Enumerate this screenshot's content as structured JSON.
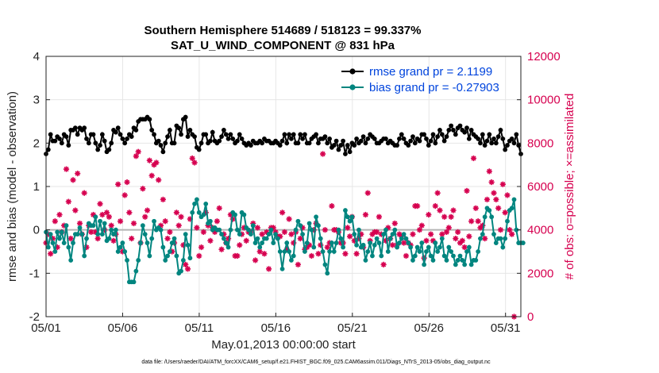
{
  "chart_data": {
    "type": "line",
    "title_line1": "Southern Hemisphere 514689 / 518123 = 99.337%",
    "title_line2": "SAT_U_WIND_COMPONENT @ 831 hPa",
    "xlabel": "May.01,2013 00:00:00 start",
    "ylabel": "rmse and bias (model - observation)",
    "ylabel_right": "# of obs: o=possible; ×=assimilated",
    "xlim": [
      1,
      32
    ],
    "ylim": [
      -2,
      4
    ],
    "ylim_right": [
      0,
      12000
    ],
    "x_ticks": [
      1,
      6,
      11,
      16,
      21,
      26,
      31
    ],
    "x_tick_labels": [
      "05/01",
      "05/06",
      "05/11",
      "05/16",
      "05/21",
      "05/26",
      "05/31"
    ],
    "y_ticks": [
      "-2",
      "-1",
      "0",
      "1",
      "2",
      "3",
      "4"
    ],
    "y_right_ticks": [
      "0",
      "2000",
      "4000",
      "6000",
      "8000",
      "10000",
      "12000"
    ],
    "legend": [
      {
        "label": "rmse grand pr = 2.1199",
        "color": "#000000"
      },
      {
        "label": "bias grand pr = -0.27903",
        "color": "#00857f"
      }
    ],
    "rmse_color": "#000000",
    "bias_color": "#00857f",
    "obs_color": "#d6004f",
    "zero_line_color": "#b4b4b4",
    "footnote": "data file: /Users/raeder/DAI/ATM_forcXX/CAM6_setup/f.e21.FHIST_BGC.f09_025.CAM6assim.011/Diags_NTrS_2013-05/obs_diag_output.nc",
    "series": [
      {
        "name": "rmse",
        "values": [
          1.75,
          1.85,
          2.2,
          2.05,
          2.05,
          2.15,
          2.1,
          2.0,
          2.2,
          2.15,
          1.95,
          2.3,
          2.3,
          2.35,
          2.2,
          2.35,
          2.3,
          2.35,
          2.1,
          2.0,
          2.2,
          2.2,
          2.0,
          1.85,
          1.95,
          2.2,
          2.05,
          1.8,
          1.85,
          2.0,
          2.3,
          2.25,
          2.35,
          2.2,
          2.1,
          2.0,
          2.1,
          2.2,
          2.15,
          2.35,
          2.3,
          2.5,
          2.55,
          2.55,
          2.55,
          2.6,
          2.55,
          2.3,
          2.2,
          2.0,
          2.05,
          1.95,
          1.8,
          2.0,
          2.15,
          2.3,
          2.0,
          2.0,
          2.4,
          2.35,
          2.2,
          2.55,
          2.6,
          2.15,
          2.3,
          2.2,
          2.15,
          1.9,
          1.85,
          2.0,
          2.2,
          2.2,
          2.0,
          2.05,
          2.25,
          2.05,
          2.0,
          2.05,
          2.15,
          2.3,
          2.2,
          2.1,
          2.2,
          2.1,
          2.0,
          2.05,
          2.2,
          2.1,
          2.0,
          1.95,
          2.0,
          1.95,
          2.05,
          2.0,
          2.0,
          2.05,
          2.0,
          2.1,
          2.05,
          2.05,
          2.0,
          2.0,
          2.05,
          2.0,
          1.95,
          2.05,
          2.2,
          2.0,
          2.2,
          2.1,
          2.2,
          2.0,
          2.0,
          2.2,
          2.1,
          2.2,
          2.0,
          2.0,
          2.1,
          2.15,
          2.2,
          2.0,
          2.1,
          2.1,
          2.15,
          2.0,
          2.1,
          1.9,
          1.95,
          2.05,
          1.85,
          1.95,
          2.05,
          1.75,
          1.95,
          1.8,
          2.0,
          1.95,
          2.1,
          2.0,
          2.05,
          2.15,
          2.0,
          2.1,
          2.2,
          2.15,
          2.1,
          2.0,
          2.0,
          2.05,
          2.1,
          2.1,
          2.0,
          2.05,
          2.0,
          1.95,
          1.95,
          2.1,
          2.2,
          2.1,
          2.0,
          1.95,
          2.05,
          2.15,
          2.0,
          2.1,
          2.05,
          2.2,
          2.2,
          2.1,
          1.95,
          2.05,
          2.2,
          2.0,
          2.15,
          2.3,
          2.2,
          2.05,
          2.15,
          2.3,
          2.4,
          2.3,
          2.2,
          2.35,
          2.4,
          2.3,
          2.25,
          2.35,
          2.1,
          2.3,
          2.2,
          2.15,
          2.1,
          2.0,
          2.2,
          1.95,
          2.05,
          2.2,
          2.0,
          2.1,
          2.0,
          2.15,
          2.3,
          2.1,
          1.85,
          1.95,
          2.05,
          2.1,
          2.0,
          2.2,
          1.95,
          1.75
        ]
      },
      {
        "name": "bias",
        "values": [
          -0.05,
          -0.4,
          -0.1,
          -0.3,
          -0.5,
          -0.05,
          -0.2,
          -0.05,
          -0.3,
          0.1,
          -0.4,
          -0.7,
          -0.3,
          -0.1,
          -0.1,
          0.05,
          -0.1,
          -0.6,
          -0.2,
          0.15,
          0.1,
          0.1,
          0.3,
          -0.1,
          0.2,
          -0.1,
          0.15,
          -0.25,
          -0.2,
          0.0,
          -0.1,
          0.0,
          -0.5,
          -0.4,
          -0.3,
          -0.5,
          -0.7,
          -1.2,
          -1.2,
          -1.2,
          -0.95,
          -0.7,
          -0.3,
          0.1,
          -0.1,
          -0.3,
          -0.6,
          -0.2,
          0.2,
          0.0,
          0.05,
          0.0,
          -0.4,
          -0.7,
          -0.6,
          -0.5,
          -0.3,
          -0.2,
          -0.6,
          -1.0,
          -0.95,
          -0.7,
          -0.1,
          -0.35,
          -0.65,
          0.4,
          0.6,
          0.7,
          0.4,
          0.3,
          0.35,
          0.6,
          0.15,
          0.2,
          0.0,
          0.05,
          0.0,
          0.0,
          -0.1,
          -0.2,
          -0.3,
          -0.4,
          0.0,
          0.4,
          0.35,
          0.0,
          -0.1,
          0.4,
          0.35,
          0.05,
          0.0,
          -0.1,
          0.1,
          -0.3,
          -0.2,
          -0.4,
          -0.3,
          -0.2,
          -0.2,
          -0.1,
          0.0,
          -0.3,
          -0.1,
          -0.2,
          -0.5,
          -0.9,
          -0.5,
          -0.3,
          -0.5,
          -0.7,
          -0.6,
          0.0,
          0.2,
          0.1,
          -0.1,
          -0.5,
          -0.3,
          0.15,
          0.0,
          -0.4,
          0.3,
          0.1,
          -0.2,
          -0.5,
          -0.8,
          -1.0,
          -0.5,
          -0.3,
          -0.5,
          -0.3,
          0.0,
          -0.2,
          -0.4,
          0.45,
          0.3,
          0.2,
          0.3,
          -0.1,
          -0.35,
          0.0,
          -0.4,
          -0.35,
          -0.7,
          -0.5,
          -0.3,
          -0.6,
          -0.35,
          -0.2,
          -0.3,
          -0.6,
          -0.1,
          0.0,
          -0.5,
          -0.2,
          -0.1,
          0.0,
          -0.4,
          -0.3,
          -0.2,
          -0.1,
          -0.2,
          -0.3,
          -0.4,
          -0.7,
          -0.6,
          -0.4,
          -0.5,
          -0.3,
          -0.8,
          -0.5,
          -0.4,
          -0.6,
          -0.7,
          -0.3,
          -0.5,
          -0.4,
          -0.2,
          -0.6,
          -0.7,
          -0.4,
          -0.5,
          -0.6,
          -0.8,
          -0.7,
          -0.6,
          -0.7,
          -0.8,
          -0.5,
          -0.4,
          -0.8,
          -0.7,
          -0.7,
          -0.5,
          -0.2,
          -0.1,
          0.3,
          0.5,
          0.45,
          0.3,
          -0.1,
          -0.3,
          -0.2,
          -0.2,
          -0.4,
          -0.2,
          0.2,
          0.45,
          0.5,
          0.7,
          0.0,
          -0.3,
          -0.3,
          -0.3
        ]
      },
      {
        "name": "obs_count",
        "values": [
          3400,
          3800,
          2900,
          3600,
          4400,
          3200,
          4700,
          3900,
          4200,
          6800,
          5300,
          3600,
          6300,
          4900,
          6600,
          4300,
          3800,
          5700,
          3200,
          4200,
          3900,
          4700,
          3900,
          3600,
          5200,
          4700,
          4000,
          4800,
          4600,
          4200,
          3500,
          3800,
          6100,
          4400,
          3000,
          5600,
          6200,
          4800,
          3600,
          4300,
          7400,
          7600,
          3400,
          5900,
          4600,
          4900,
          7200,
          6500,
          7000,
          7100,
          6300,
          4200,
          5400,
          4400,
          3600,
          3900,
          3000,
          3400,
          4800,
          4200,
          4600,
          3300,
          2400,
          2200,
          4500,
          7300,
          7100,
          4100,
          2800,
          3200,
          3900,
          4800,
          4200,
          3500,
          4100,
          3900,
          4400,
          5000,
          3100,
          3800,
          3400,
          3600,
          4700,
          4500,
          2800,
          2800,
          3300,
          3800,
          4100,
          3500,
          3900,
          3900,
          4300,
          2600,
          4100,
          3000,
          3800,
          2900,
          3900,
          2200,
          4100,
          4100,
          3900,
          3700,
          3700,
          4800,
          3900,
          3100,
          4500,
          3800,
          3400,
          3900,
          2400,
          3600,
          4100,
          3100,
          3200,
          3300,
          2800,
          4000,
          4300,
          2900,
          3300,
          7500,
          4000,
          3200,
          3400,
          5100,
          4000,
          4000,
          3900,
          3400,
          3400,
          2900,
          4100,
          3700,
          4600,
          3500,
          2900,
          3600,
          3800,
          3200,
          4700,
          5700,
          3500,
          3800,
          3900,
          3900,
          4600,
          3800,
          2400,
          3500,
          4100,
          3600,
          3300,
          4300,
          3300,
          3800,
          3700,
          3400,
          2800,
          3400,
          3300,
          3800,
          5100,
          5100,
          4000,
          4200,
          2700,
          3500,
          4700,
          3800,
          3500,
          5100,
          5700,
          4900,
          3800,
          4600,
          3900,
          4100,
          4600,
          4900,
          3600,
          3900,
          3400,
          3500,
          3200,
          5800,
          3700,
          4400,
          7300,
          5000,
          4400,
          4100,
          4200,
          3600,
          5400,
          6700,
          6200,
          5700,
          5400,
          5000,
          4000,
          6100,
          4800,
          5600,
          4000,
          3800,
          0
        ]
      }
    ]
  }
}
